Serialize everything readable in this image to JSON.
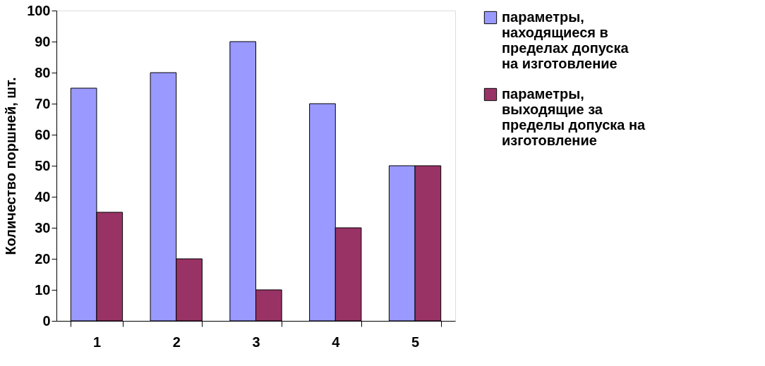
{
  "chart_data": {
    "type": "bar",
    "ylabel": "Количество поршней, шт.",
    "categories": [
      "1",
      "2",
      "3",
      "4",
      "5"
    ],
    "series": [
      {
        "name": "параметры, находящиеся в пределах допуска на изготовление",
        "color": "#9999ff",
        "values": [
          75,
          80,
          90,
          70,
          50
        ]
      },
      {
        "name": "параметры, выходящие за пределы допуска на изготовление",
        "color": "#993366",
        "values": [
          35,
          20,
          10,
          30,
          50
        ]
      }
    ],
    "ylim": [
      0,
      100
    ],
    "yticks": [
      0,
      10,
      20,
      30,
      40,
      50,
      60,
      70,
      80,
      90,
      100
    ],
    "grid": false,
    "legend": "right"
  }
}
